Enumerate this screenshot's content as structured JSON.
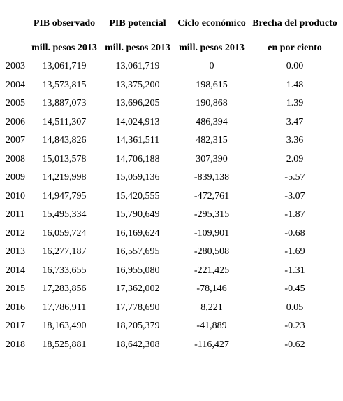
{
  "headers": {
    "col1_line1": "PIB observado",
    "col2_line1": "PIB potencial",
    "col3_line1": "Ciclo económico",
    "col4_line1": "Brecha del producto",
    "col1_line2": "mill. pesos 2013",
    "col2_line2": "mill. pesos 2013",
    "col3_line2": "mill. pesos 2013",
    "col4_line2": "en por ciento"
  },
  "rows": [
    {
      "year": "2003",
      "observado": "13,061,719",
      "potencial": "13,061,719",
      "ciclo": "0",
      "brecha": "0.00"
    },
    {
      "year": "2004",
      "observado": "13,573,815",
      "potencial": "13,375,200",
      "ciclo": "198,615",
      "brecha": "1.48"
    },
    {
      "year": "2005",
      "observado": "13,887,073",
      "potencial": "13,696,205",
      "ciclo": "190,868",
      "brecha": "1.39"
    },
    {
      "year": "2006",
      "observado": "14,511,307",
      "potencial": "14,024,913",
      "ciclo": "486,394",
      "brecha": "3.47"
    },
    {
      "year": "2007",
      "observado": "14,843,826",
      "potencial": "14,361,511",
      "ciclo": "482,315",
      "brecha": "3.36"
    },
    {
      "year": "2008",
      "observado": "15,013,578",
      "potencial": "14,706,188",
      "ciclo": "307,390",
      "brecha": "2.09"
    },
    {
      "year": "2009",
      "observado": "14,219,998",
      "potencial": "15,059,136",
      "ciclo": "-839,138",
      "brecha": "-5.57"
    },
    {
      "year": "2010",
      "observado": "14,947,795",
      "potencial": "15,420,555",
      "ciclo": "-472,761",
      "brecha": "-3.07"
    },
    {
      "year": "2011",
      "observado": "15,495,334",
      "potencial": "15,790,649",
      "ciclo": "-295,315",
      "brecha": "-1.87"
    },
    {
      "year": "2012",
      "observado": "16,059,724",
      "potencial": "16,169,624",
      "ciclo": "-109,901",
      "brecha": "-0.68"
    },
    {
      "year": "2013",
      "observado": "16,277,187",
      "potencial": "16,557,695",
      "ciclo": "-280,508",
      "brecha": "-1.69"
    },
    {
      "year": "2014",
      "observado": "16,733,655",
      "potencial": "16,955,080",
      "ciclo": "-221,425",
      "brecha": "-1.31"
    },
    {
      "year": "2015",
      "observado": "17,283,856",
      "potencial": "17,362,002",
      "ciclo": "-78,146",
      "brecha": "-0.45"
    },
    {
      "year": "2016",
      "observado": "17,786,911",
      "potencial": "17,778,690",
      "ciclo": "8,221",
      "brecha": "0.05"
    },
    {
      "year": "2017",
      "observado": "18,163,490",
      "potencial": "18,205,379",
      "ciclo": "-41,889",
      "brecha": "-0.23"
    },
    {
      "year": "2018",
      "observado": "18,525,881",
      "potencial": "18,642,308",
      "ciclo": "-116,427",
      "brecha": "-0.62"
    }
  ]
}
